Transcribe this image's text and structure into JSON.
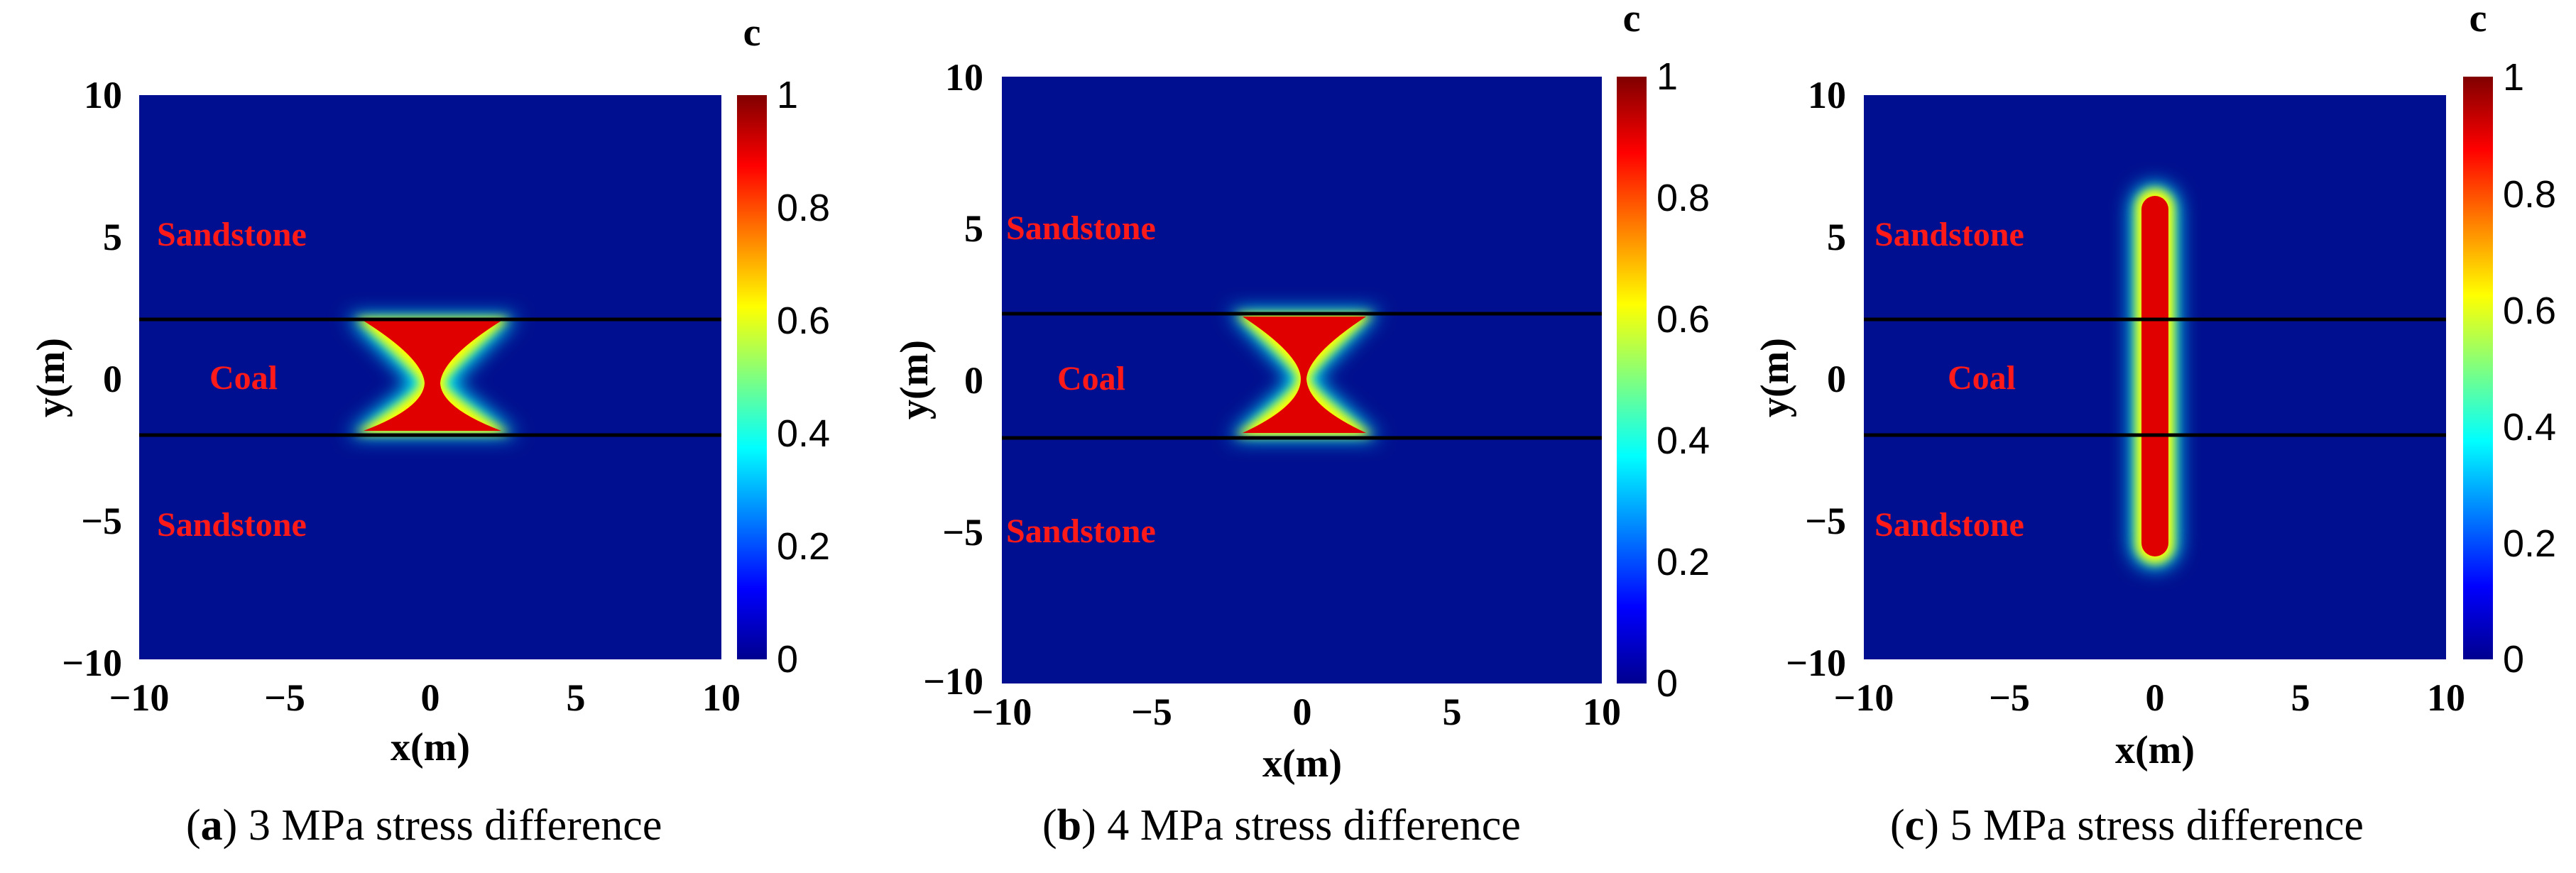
{
  "chart_data": [
    {
      "type": "heatmap",
      "id": "a",
      "letter": "a",
      "caption": "3 MPa stress difference",
      "xlabel": "x(m)",
      "ylabel": "y(m)",
      "xlim": [
        -10,
        10
      ],
      "ylim": [
        -10,
        10
      ],
      "xticks": [
        "−10",
        "−5",
        "0",
        "5",
        "10"
      ],
      "yticks": [
        "10",
        "5",
        "0",
        "−5",
        "−10"
      ],
      "xtick_values": [
        -10,
        -5,
        0,
        5,
        10
      ],
      "ytick_values": [
        10,
        5,
        0,
        -5,
        -10
      ],
      "colorbar": {
        "label": "c",
        "min": 0,
        "max": 1,
        "ticks": [
          "1",
          "0.8",
          "0.6",
          "0.4",
          "0.2",
          "0"
        ],
        "tick_values": [
          1,
          0.8,
          0.6,
          0.4,
          0.2,
          0
        ]
      },
      "layer_boundaries_y": [
        2,
        -2
      ],
      "annotations": [
        {
          "text": "Sandstone",
          "x": -6,
          "y": 5
        },
        {
          "text": "Coal",
          "x": -6,
          "y": 0
        },
        {
          "text": "Sandstone",
          "x": -6,
          "y": -5
        }
      ],
      "fracture": {
        "shape": "hourglass",
        "center": [
          0,
          0
        ],
        "half_width_outer": 3,
        "half_width_waist": 0.5,
        "y_top": 2,
        "y_bottom": -2,
        "c_value": 1
      }
    },
    {
      "type": "heatmap",
      "id": "b",
      "letter": "b",
      "caption": "4 MPa stress difference",
      "xlabel": "x(m)",
      "ylabel": "y(m)",
      "xlim": [
        -10,
        10
      ],
      "ylim": [
        -10,
        10
      ],
      "xticks": [
        "−10",
        "−5",
        "0",
        "5",
        "10"
      ],
      "yticks": [
        "10",
        "5",
        "0",
        "−5",
        "−10"
      ],
      "xtick_values": [
        -10,
        -5,
        0,
        5,
        10
      ],
      "ytick_values": [
        10,
        5,
        0,
        -5,
        -10
      ],
      "colorbar": {
        "label": "c",
        "min": 0,
        "max": 1,
        "ticks": [
          "1",
          "0.8",
          "0.6",
          "0.4",
          "0.2",
          "0"
        ],
        "tick_values": [
          1,
          0.8,
          0.6,
          0.4,
          0.2,
          0
        ]
      },
      "layer_boundaries_y": [
        2,
        -2
      ],
      "annotations": [
        {
          "text": "Sandstone",
          "x": -6,
          "y": 5
        },
        {
          "text": "Coal",
          "x": -6,
          "y": 0
        },
        {
          "text": "Sandstone",
          "x": -6,
          "y": -5
        }
      ],
      "fracture": {
        "shape": "hourglass",
        "center": [
          0,
          0
        ],
        "half_width_outer": 2.5,
        "half_width_waist": 0.5,
        "y_top": 2,
        "y_bottom": -2,
        "c_value": 1
      }
    },
    {
      "type": "heatmap",
      "id": "c",
      "letter": "c",
      "caption": "5 MPa stress difference",
      "xlabel": "x(m)",
      "ylabel": "y(m)",
      "xlim": [
        -10,
        10
      ],
      "ylim": [
        -10,
        10
      ],
      "xticks": [
        "−10",
        "−5",
        "0",
        "5",
        "10"
      ],
      "yticks": [
        "10",
        "5",
        "0",
        "−5",
        "−10"
      ],
      "xtick_values": [
        -10,
        -5,
        0,
        5,
        10
      ],
      "ytick_values": [
        10,
        5,
        0,
        -5,
        -10
      ],
      "colorbar": {
        "label": "c",
        "min": 0,
        "max": 1,
        "ticks": [
          "1",
          "0.8",
          "0.6",
          "0.4",
          "0.2",
          "0"
        ],
        "tick_values": [
          1,
          0.8,
          0.6,
          0.4,
          0.2,
          0
        ]
      },
      "layer_boundaries_y": [
        2,
        -2
      ],
      "annotations": [
        {
          "text": "Sandstone",
          "x": -6,
          "y": 5
        },
        {
          "text": "Coal",
          "x": -6,
          "y": 0
        },
        {
          "text": "Sandstone",
          "x": -6,
          "y": -5
        }
      ],
      "fracture": {
        "shape": "vertical-band",
        "center": [
          0,
          0
        ],
        "half_width": 0.5,
        "y_top": 6.5,
        "y_bottom": -6.5,
        "c_value": 1
      }
    }
  ],
  "colors": {
    "background_c0": "#000f8f",
    "colormap": [
      "#00008f",
      "#0000ff",
      "#00ffff",
      "#ffff00",
      "#ff0000",
      "#800000"
    ],
    "annotation": "#ff1a1a",
    "boundary": "#000000"
  }
}
